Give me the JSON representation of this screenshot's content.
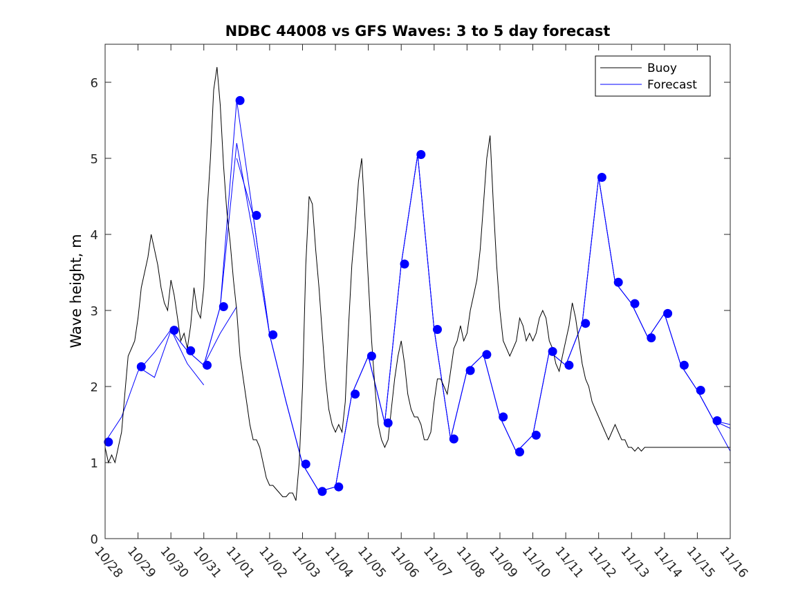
{
  "chart_data": {
    "type": "line",
    "title": "NDBC 44008 vs GFS Waves: 3 to 5 day forecast",
    "xlabel": "",
    "ylabel": "Wave height, m",
    "xlim": [
      0,
      19
    ],
    "ylim": [
      0,
      6.5
    ],
    "x_ticks": [
      0,
      1,
      2,
      3,
      4,
      5,
      6,
      7,
      8,
      9,
      10,
      11,
      12,
      13,
      14,
      15,
      16,
      17,
      18,
      19
    ],
    "x_tick_labels": [
      "10/28",
      "10/29",
      "10/30",
      "10/31",
      "11/01",
      "11/02",
      "11/03",
      "11/04",
      "11/05",
      "11/06",
      "11/07",
      "11/08",
      "11/09",
      "11/10",
      "11/11",
      "11/12",
      "11/13",
      "11/14",
      "11/15",
      "11/16"
    ],
    "y_ticks": [
      0,
      1,
      2,
      3,
      4,
      5,
      6
    ],
    "y_tick_labels": [
      "0",
      "1",
      "2",
      "3",
      "4",
      "5",
      "6"
    ],
    "legend": {
      "position": "top-right",
      "entries": [
        {
          "label": "Buoy",
          "color": "#000000"
        },
        {
          "label": "Forecast",
          "color": "#0000ff"
        }
      ]
    },
    "series": [
      {
        "name": "Buoy",
        "color": "#000000",
        "x": [
          0,
          0.1,
          0.2,
          0.3,
          0.4,
          0.5,
          0.6,
          0.7,
          0.8,
          0.9,
          1.0,
          1.1,
          1.2,
          1.3,
          1.4,
          1.5,
          1.6,
          1.7,
          1.8,
          1.9,
          2.0,
          2.1,
          2.2,
          2.3,
          2.4,
          2.5,
          2.6,
          2.7,
          2.8,
          2.9,
          3.0,
          3.1,
          3.2,
          3.3,
          3.4,
          3.5,
          3.6,
          3.7,
          3.8,
          3.9,
          4.0,
          4.1,
          4.2,
          4.3,
          4.4,
          4.5,
          4.6,
          4.7,
          4.8,
          4.9,
          5.0,
          5.1,
          5.2,
          5.3,
          5.4,
          5.5,
          5.6,
          5.7,
          5.8,
          5.9,
          6.0,
          6.1,
          6.2,
          6.3,
          6.4,
          6.5,
          6.6,
          6.7,
          6.8,
          6.9,
          7.0,
          7.1,
          7.2,
          7.3,
          7.4,
          7.5,
          7.6,
          7.7,
          7.8,
          7.9,
          8.0,
          8.1,
          8.2,
          8.3,
          8.4,
          8.5,
          8.6,
          8.7,
          8.8,
          8.9,
          9.0,
          9.1,
          9.2,
          9.3,
          9.4,
          9.5,
          9.6,
          9.7,
          9.8,
          9.9,
          10.0,
          10.1,
          10.2,
          10.3,
          10.4,
          10.5,
          10.6,
          10.7,
          10.8,
          10.9,
          11.0,
          11.1,
          11.2,
          11.3,
          11.4,
          11.5,
          11.6,
          11.7,
          11.8,
          11.9,
          12.0,
          12.1,
          12.2,
          12.3,
          12.4,
          12.5,
          12.6,
          12.7,
          12.8,
          12.9,
          13.0,
          13.1,
          13.2,
          13.3,
          13.4,
          13.5,
          13.6,
          13.7,
          13.8,
          13.9,
          14.0,
          14.1,
          14.2,
          14.3,
          14.4,
          14.5,
          14.6,
          14.7,
          14.8,
          14.9,
          15.0,
          15.1,
          15.2,
          15.3,
          15.4,
          15.5,
          15.6,
          15.7,
          15.8,
          15.9,
          16.0,
          16.1,
          16.2,
          16.3,
          16.4,
          16.5,
          16.6,
          16.7,
          16.8,
          16.9,
          17.0,
          17.1,
          17.2,
          17.3,
          17.4,
          17.5,
          17.6,
          17.7,
          17.8,
          17.9,
          18.0,
          18.1,
          18.2,
          18.3,
          18.4,
          18.5,
          18.6,
          18.7,
          18.8,
          18.9,
          19.0
        ],
        "values": [
          1.2,
          1.0,
          1.1,
          1.0,
          1.2,
          1.4,
          1.9,
          2.4,
          2.5,
          2.6,
          2.9,
          3.3,
          3.5,
          3.7,
          4.0,
          3.8,
          3.6,
          3.3,
          3.1,
          3.0,
          3.4,
          3.2,
          2.9,
          2.6,
          2.7,
          2.5,
          2.8,
          3.3,
          3.0,
          2.9,
          3.3,
          4.3,
          5.0,
          5.9,
          6.2,
          5.7,
          4.9,
          4.3,
          3.9,
          3.4,
          3.0,
          2.4,
          2.1,
          1.8,
          1.5,
          1.3,
          1.3,
          1.2,
          1.0,
          0.8,
          0.7,
          0.7,
          0.65,
          0.6,
          0.55,
          0.55,
          0.6,
          0.6,
          0.5,
          1.0,
          2.0,
          3.6,
          4.5,
          4.4,
          3.8,
          3.3,
          2.7,
          2.1,
          1.7,
          1.5,
          1.4,
          1.5,
          1.4,
          1.8,
          2.8,
          3.6,
          4.1,
          4.7,
          5.0,
          4.2,
          3.4,
          2.6,
          2.0,
          1.5,
          1.3,
          1.2,
          1.3,
          1.7,
          2.1,
          2.4,
          2.6,
          2.3,
          1.9,
          1.7,
          1.6,
          1.6,
          1.5,
          1.3,
          1.3,
          1.4,
          1.8,
          2.1,
          2.1,
          2.0,
          1.9,
          2.2,
          2.5,
          2.6,
          2.8,
          2.6,
          2.7,
          3.0,
          3.2,
          3.4,
          3.8,
          4.4,
          5.0,
          5.3,
          4.4,
          3.6,
          3.0,
          2.6,
          2.5,
          2.4,
          2.5,
          2.6,
          2.9,
          2.8,
          2.6,
          2.7,
          2.6,
          2.7,
          2.9,
          3.0,
          2.9,
          2.6,
          2.5,
          2.3,
          2.2,
          2.4,
          2.6,
          2.8,
          3.1,
          2.9,
          2.6,
          2.3,
          2.1,
          2.0,
          1.8,
          1.7,
          1.6,
          1.5,
          1.4,
          1.3,
          1.4,
          1.5,
          1.4,
          1.3,
          1.3,
          1.2,
          1.2,
          1.15,
          1.2,
          1.15,
          1.2,
          1.2,
          1.2,
          1.2,
          1.2,
          1.2,
          1.2,
          1.2,
          1.2,
          1.2,
          1.2,
          1.2,
          1.2,
          1.2,
          1.2,
          1.2,
          1.2,
          1.2,
          1.2,
          1.2,
          1.2,
          1.2,
          1.2,
          1.2,
          1.2,
          1.2,
          1.2
        ]
      }
    ],
    "forecast_runs": [
      {
        "x": [
          0.0,
          0.5,
          1.0,
          1.5,
          2.0,
          2.5,
          3.0
        ],
        "values": [
          1.27,
          1.6,
          2.2,
          2.45,
          2.75,
          2.3,
          2.02
        ]
      },
      {
        "x": [
          1.0,
          1.5,
          2.0,
          2.5,
          3.0,
          3.5,
          4.0
        ],
        "values": [
          2.26,
          2.12,
          2.74,
          2.47,
          2.28,
          2.7,
          3.05
        ]
      },
      {
        "x": [
          2.0,
          2.5,
          3.0,
          3.5,
          4.0,
          4.5,
          5.0
        ],
        "values": [
          2.74,
          2.47,
          2.28,
          3.05,
          5.76,
          4.25,
          2.68
        ]
      },
      {
        "x": [
          3.0,
          3.5,
          4.0,
          4.5,
          5.0,
          5.5,
          6.0
        ],
        "values": [
          2.28,
          3.05,
          5.2,
          4.0,
          2.68,
          1.8,
          0.98
        ]
      },
      {
        "x": [
          4.0,
          4.5,
          5.0,
          5.5,
          6.0,
          6.5,
          7.0
        ],
        "values": [
          5.0,
          4.25,
          2.68,
          1.8,
          0.98,
          0.62,
          0.68
        ]
      },
      {
        "x": [
          5.0,
          5.5,
          6.0,
          6.5,
          7.0,
          7.5,
          8.0
        ],
        "values": [
          2.68,
          1.8,
          0.98,
          0.62,
          0.68,
          1.9,
          2.4
        ]
      },
      {
        "x": [
          6.0,
          6.5,
          7.0,
          7.5,
          8.0,
          8.5,
          9.0
        ],
        "values": [
          0.98,
          0.62,
          0.68,
          1.9,
          2.4,
          1.52,
          3.61
        ]
      },
      {
        "x": [
          7.0,
          7.5,
          8.0,
          8.5,
          9.0,
          9.5,
          10.0
        ],
        "values": [
          0.68,
          1.9,
          2.4,
          1.52,
          3.61,
          5.05,
          2.75
        ]
      },
      {
        "x": [
          8.0,
          8.5,
          9.0,
          9.5,
          10.0,
          10.5,
          11.0
        ],
        "values": [
          2.4,
          1.52,
          3.61,
          5.05,
          2.75,
          1.31,
          2.21
        ]
      },
      {
        "x": [
          9.0,
          9.5,
          10.0,
          10.5,
          11.0,
          11.5,
          12.0
        ],
        "values": [
          3.61,
          5.05,
          2.75,
          1.31,
          2.21,
          2.42,
          1.6
        ]
      },
      {
        "x": [
          10.0,
          10.5,
          11.0,
          11.5,
          12.0,
          12.5,
          13.0
        ],
        "values": [
          2.75,
          1.31,
          2.21,
          2.42,
          1.6,
          1.14,
          1.36
        ]
      },
      {
        "x": [
          11.0,
          11.5,
          12.0,
          12.5,
          13.0,
          13.5,
          14.0
        ],
        "values": [
          2.21,
          2.42,
          1.6,
          1.14,
          1.36,
          2.46,
          2.28
        ]
      },
      {
        "x": [
          12.0,
          12.5,
          13.0,
          13.5,
          14.0,
          14.5,
          15.0
        ],
        "values": [
          1.6,
          1.14,
          1.36,
          2.46,
          2.28,
          2.83,
          4.75
        ]
      },
      {
        "x": [
          13.0,
          13.5,
          14.0,
          14.5,
          15.0,
          15.5,
          16.0
        ],
        "values": [
          1.36,
          2.46,
          2.28,
          2.83,
          4.75,
          3.37,
          3.09
        ]
      },
      {
        "x": [
          14.0,
          14.5,
          15.0,
          15.5,
          16.0,
          16.5,
          17.0
        ],
        "values": [
          2.28,
          2.83,
          4.75,
          3.37,
          3.09,
          2.64,
          2.96
        ]
      },
      {
        "x": [
          15.0,
          15.5,
          16.0,
          16.5,
          17.0,
          17.5,
          18.0
        ],
        "values": [
          4.75,
          3.37,
          3.09,
          2.64,
          2.96,
          2.28,
          1.95
        ]
      },
      {
        "x": [
          16.0,
          16.5,
          17.0,
          17.5,
          18.0,
          18.5,
          19.0
        ],
        "values": [
          3.09,
          2.64,
          2.96,
          2.28,
          1.95,
          1.55,
          1.15
        ]
      },
      {
        "x": [
          17.0,
          17.5,
          18.0,
          18.5,
          19.0
        ],
        "values": [
          2.96,
          2.28,
          1.95,
          1.55,
          1.45
        ]
      },
      {
        "x": [
          18.0,
          18.5,
          19.0
        ],
        "values": [
          1.95,
          1.55,
          1.5
        ]
      }
    ],
    "forecast_points": {
      "x": [
        0.1,
        1.1,
        2.1,
        2.6,
        3.1,
        3.6,
        4.1,
        4.6,
        5.1,
        6.1,
        6.6,
        7.1,
        7.6,
        8.1,
        8.6,
        9.1,
        9.6,
        10.1,
        10.6,
        11.1,
        11.6,
        12.1,
        12.6,
        13.1,
        13.6,
        14.1,
        14.6,
        15.1,
        15.6,
        16.1,
        16.6,
        17.1,
        17.6,
        18.1,
        18.6
      ],
      "values": [
        1.27,
        2.26,
        2.74,
        2.47,
        2.28,
        3.05,
        5.76,
        4.25,
        2.68,
        0.98,
        0.62,
        0.68,
        1.9,
        2.4,
        1.52,
        3.61,
        5.05,
        2.75,
        1.31,
        2.21,
        2.42,
        1.6,
        1.14,
        1.36,
        2.46,
        2.28,
        2.83,
        4.75,
        3.37,
        3.09,
        2.64,
        2.96,
        2.28,
        1.95,
        1.55
      ]
    }
  }
}
